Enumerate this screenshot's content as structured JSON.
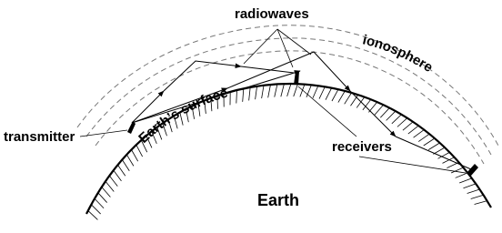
{
  "labels": {
    "radiowaves": "radiowaves",
    "ionosphere": "ionosphere",
    "transmitter": "transmitter",
    "surface": "Earth’s surface",
    "receivers": "receivers",
    "earth": "Earth"
  }
}
